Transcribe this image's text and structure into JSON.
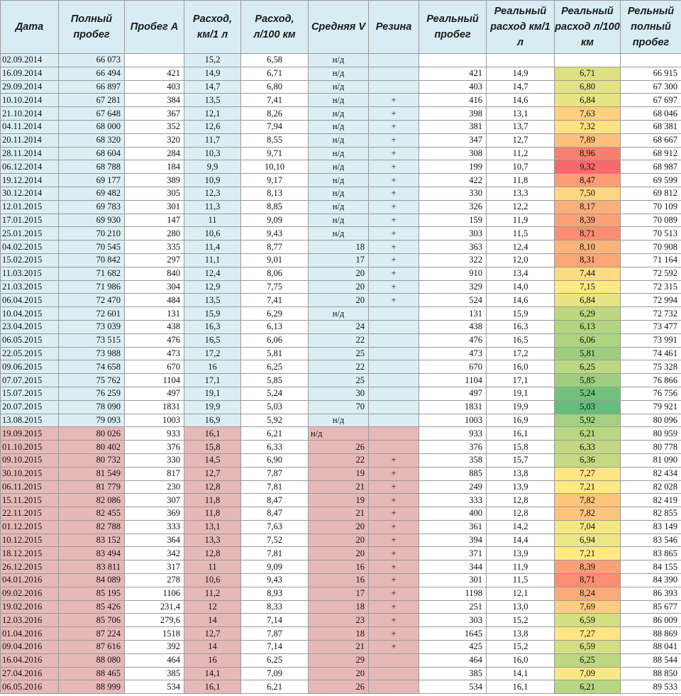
{
  "columns": [
    "Дата",
    "Полный пробег",
    "Пробег А",
    "Расход, км/1 л",
    "Расход, л/100 км",
    "Средняя V",
    "Резина",
    "Реальный пробег",
    "Реальный расход км/1 л",
    "Реальный расход л/100 км",
    "Рельный полный пробег"
  ],
  "colors": {
    "header_bg": "#d8ecf3",
    "period1_fill": "#daeef3",
    "period2_fill": "#e6b8b7",
    "scale_low": "#63be7b",
    "scale_mid": "#ffeb84",
    "scale_high": "#f8696b"
  },
  "rows": [
    {
      "date": "02.09.2014",
      "full": "66 073",
      "a": "",
      "rate_km": "15,2",
      "rate_l": "6,58",
      "v": "н/д",
      "tire": "",
      "real_a": "",
      "real_km": "",
      "real_l": "",
      "real_full": "",
      "period": 1
    },
    {
      "date": "16.09.2014",
      "full": "66 494",
      "a": "421",
      "rate_km": "14,9",
      "rate_l": "6,71",
      "v": "н/д",
      "tire": "",
      "real_a": "421",
      "real_km": "14,9",
      "real_l": "6,71",
      "real_full": "66 915",
      "period": 1
    },
    {
      "date": "29.09.2014",
      "full": "66 897",
      "a": "403",
      "rate_km": "14,7",
      "rate_l": "6,80",
      "v": "н/д",
      "tire": "",
      "real_a": "403",
      "real_km": "14,7",
      "real_l": "6,80",
      "real_full": "67 300",
      "period": 1
    },
    {
      "date": "10.10.2014",
      "full": "67 281",
      "a": "384",
      "rate_km": "13,5",
      "rate_l": "7,41",
      "v": "н/д",
      "tire": "+",
      "real_a": "416",
      "real_km": "14,6",
      "real_l": "6,84",
      "real_full": "67 697",
      "period": 1
    },
    {
      "date": "21.10.2014",
      "full": "67 648",
      "a": "367",
      "rate_km": "12,1",
      "rate_l": "8,26",
      "v": "н/д",
      "tire": "+",
      "real_a": "398",
      "real_km": "13,1",
      "real_l": "7,63",
      "real_full": "68 046",
      "period": 1
    },
    {
      "date": "04.11.2014",
      "full": "68 000",
      "a": "352",
      "rate_km": "12,6",
      "rate_l": "7,94",
      "v": "н/д",
      "tire": "+",
      "real_a": "381",
      "real_km": "13,7",
      "real_l": "7,32",
      "real_full": "68 381",
      "period": 1
    },
    {
      "date": "20.11.2014",
      "full": "68 320",
      "a": "320",
      "rate_km": "11,7",
      "rate_l": "8,55",
      "v": "н/д",
      "tire": "+",
      "real_a": "347",
      "real_km": "12,7",
      "real_l": "7,89",
      "real_full": "68 667",
      "period": 1
    },
    {
      "date": "28.11.2014",
      "full": "68 604",
      "a": "284",
      "rate_km": "10,3",
      "rate_l": "9,71",
      "v": "н/д",
      "tire": "+",
      "real_a": "308",
      "real_km": "11,2",
      "real_l": "8,96",
      "real_full": "68 912",
      "period": 1
    },
    {
      "date": "06.12.2014",
      "full": "68 788",
      "a": "184",
      "rate_km": "9,9",
      "rate_l": "10,10",
      "v": "н/д",
      "tire": "+",
      "real_a": "199",
      "real_km": "10,7",
      "real_l": "9,32",
      "real_full": "68 987",
      "period": 1
    },
    {
      "date": "19.12.2014",
      "full": "69 177",
      "a": "389",
      "rate_km": "10,9",
      "rate_l": "9,17",
      "v": "н/д",
      "tire": "+",
      "real_a": "422",
      "real_km": "11,8",
      "real_l": "8,47",
      "real_full": "69 599",
      "period": 1
    },
    {
      "date": "30.12.2014",
      "full": "69 482",
      "a": "305",
      "rate_km": "12,3",
      "rate_l": "8,13",
      "v": "н/д",
      "tire": "+",
      "real_a": "330",
      "real_km": "13,3",
      "real_l": "7,50",
      "real_full": "69 812",
      "period": 1
    },
    {
      "date": "12.01.2015",
      "full": "69 783",
      "a": "301",
      "rate_km": "11,3",
      "rate_l": "8,85",
      "v": "н/д",
      "tire": "+",
      "real_a": "326",
      "real_km": "12,2",
      "real_l": "8,17",
      "real_full": "70 109",
      "period": 1
    },
    {
      "date": "17.01.2015",
      "full": "69 930",
      "a": "147",
      "rate_km": "11",
      "rate_l": "9,09",
      "v": "н/д",
      "tire": "+",
      "real_a": "159",
      "real_km": "11,9",
      "real_l": "8,39",
      "real_full": "70 089",
      "period": 1
    },
    {
      "date": "25.01.2015",
      "full": "70 210",
      "a": "280",
      "rate_km": "10,6",
      "rate_l": "9,43",
      "v": "н/д",
      "tire": "+",
      "real_a": "303",
      "real_km": "11,5",
      "real_l": "8,71",
      "real_full": "70 513",
      "period": 1
    },
    {
      "date": "04.02.2015",
      "full": "70 545",
      "a": "335",
      "rate_km": "11,4",
      "rate_l": "8,77",
      "v": "18",
      "tire": "+",
      "real_a": "363",
      "real_km": "12,4",
      "real_l": "8,10",
      "real_full": "70 908",
      "period": 1
    },
    {
      "date": "15.02.2015",
      "full": "70 842",
      "a": "297",
      "rate_km": "11,1",
      "rate_l": "9,01",
      "v": "17",
      "tire": "+",
      "real_a": "322",
      "real_km": "12,0",
      "real_l": "8,31",
      "real_full": "71 164",
      "period": 1
    },
    {
      "date": "11.03.2015",
      "full": "71 682",
      "a": "840",
      "rate_km": "12,4",
      "rate_l": "8,06",
      "v": "20",
      "tire": "+",
      "real_a": "910",
      "real_km": "13,4",
      "real_l": "7,44",
      "real_full": "72 592",
      "period": 1
    },
    {
      "date": "21.03.2015",
      "full": "71 986",
      "a": "304",
      "rate_km": "12,9",
      "rate_l": "7,75",
      "v": "20",
      "tire": "+",
      "real_a": "329",
      "real_km": "14,0",
      "real_l": "7,15",
      "real_full": "72 315",
      "period": 1
    },
    {
      "date": "06.04.2015",
      "full": "72 470",
      "a": "484",
      "rate_km": "13,5",
      "rate_l": "7,41",
      "v": "20",
      "tire": "+",
      "real_a": "524",
      "real_km": "14,6",
      "real_l": "6,84",
      "real_full": "72 994",
      "period": 1
    },
    {
      "date": "10.04.2015",
      "full": "72 601",
      "a": "131",
      "rate_km": "15,9",
      "rate_l": "6,29",
      "v": "н/д",
      "tire": "",
      "real_a": "131",
      "real_km": "15,9",
      "real_l": "6,29",
      "real_full": "72 732",
      "period": 1
    },
    {
      "date": "23.04.2015",
      "full": "73 039",
      "a": "438",
      "rate_km": "16,3",
      "rate_l": "6,13",
      "v": "24",
      "tire": "",
      "real_a": "438",
      "real_km": "16,3",
      "real_l": "6,13",
      "real_full": "73 477",
      "period": 1
    },
    {
      "date": "06.05.2015",
      "full": "73 515",
      "a": "476",
      "rate_km": "16,5",
      "rate_l": "6,06",
      "v": "22",
      "tire": "",
      "real_a": "476",
      "real_km": "16,5",
      "real_l": "6,06",
      "real_full": "73 991",
      "period": 1
    },
    {
      "date": "22.05.2015",
      "full": "73 988",
      "a": "473",
      "rate_km": "17,2",
      "rate_l": "5,81",
      "v": "25",
      "tire": "",
      "real_a": "473",
      "real_km": "17,2",
      "real_l": "5,81",
      "real_full": "74 461",
      "period": 1
    },
    {
      "date": "09.06.2015",
      "full": "74 658",
      "a": "670",
      "rate_km": "16",
      "rate_l": "6,25",
      "v": "22",
      "tire": "",
      "real_a": "670",
      "real_km": "16,0",
      "real_l": "6,25",
      "real_full": "75 328",
      "period": 1
    },
    {
      "date": "07.07.2015",
      "full": "75 762",
      "a": "1104",
      "rate_km": "17,1",
      "rate_l": "5,85",
      "v": "25",
      "tire": "",
      "real_a": "1104",
      "real_km": "17,1",
      "real_l": "5,85",
      "real_full": "76 866",
      "period": 1
    },
    {
      "date": "15.07.2015",
      "full": "76 259",
      "a": "497",
      "rate_km": "19,1",
      "rate_l": "5,24",
      "v": "30",
      "tire": "",
      "real_a": "497",
      "real_km": "19,1",
      "real_l": "5,24",
      "real_full": "76 756",
      "period": 1
    },
    {
      "date": "20.07.2015",
      "full": "78 090",
      "a": "1831",
      "rate_km": "19,9",
      "rate_l": "5,03",
      "v": "70",
      "tire": "",
      "real_a": "1831",
      "real_km": "19,9",
      "real_l": "5,03",
      "real_full": "79 921",
      "period": 1
    },
    {
      "date": "13.08.2015",
      "full": "79 093",
      "a": "1003",
      "rate_km": "16,9",
      "rate_l": "5,92",
      "v": "н/д",
      "tire": "",
      "real_a": "1003",
      "real_km": "16,9",
      "real_l": "5,92",
      "real_full": "80 096",
      "period": 1
    },
    {
      "date": "19.09.2015",
      "full": "80 026",
      "a": "933",
      "rate_km": "16,1",
      "rate_l": "6,21",
      "v": "н/д",
      "tire": "",
      "real_a": "933",
      "real_km": "16,1",
      "real_l": "6,21",
      "real_full": "80 959",
      "period": 2
    },
    {
      "date": "01.10.2015",
      "full": "80 402",
      "a": "376",
      "rate_km": "15,8",
      "rate_l": "6,33",
      "v": "26",
      "tire": "",
      "real_a": "376",
      "real_km": "15,8",
      "real_l": "6,33",
      "real_full": "80 778",
      "period": 2
    },
    {
      "date": "09.10.2015",
      "full": "80 732",
      "a": "330",
      "rate_km": "14,5",
      "rate_l": "6,90",
      "v": "22",
      "tire": "+",
      "real_a": "358",
      "real_km": "15,7",
      "real_l": "6,36",
      "real_full": "81 090",
      "period": 2
    },
    {
      "date": "30.10.2015",
      "full": "81 549",
      "a": "817",
      "rate_km": "12,7",
      "rate_l": "7,87",
      "v": "19",
      "tire": "+",
      "real_a": "885",
      "real_km": "13,8",
      "real_l": "7,27",
      "real_full": "82 434",
      "period": 2
    },
    {
      "date": "06.11.2015",
      "full": "81 779",
      "a": "230",
      "rate_km": "12,8",
      "rate_l": "7,81",
      "v": "21",
      "tire": "+",
      "real_a": "249",
      "real_km": "13,9",
      "real_l": "7,21",
      "real_full": "82 028",
      "period": 2
    },
    {
      "date": "15.11.2015",
      "full": "82 086",
      "a": "307",
      "rate_km": "11,8",
      "rate_l": "8,47",
      "v": "19",
      "tire": "+",
      "real_a": "333",
      "real_km": "12,8",
      "real_l": "7,82",
      "real_full": "82 419",
      "period": 2
    },
    {
      "date": "22.11.2015",
      "full": "82 455",
      "a": "369",
      "rate_km": "11,8",
      "rate_l": "8,47",
      "v": "21",
      "tire": "+",
      "real_a": "400",
      "real_km": "12,8",
      "real_l": "7,82",
      "real_full": "82 855",
      "period": 2
    },
    {
      "date": "01.12.2015",
      "full": "82 788",
      "a": "333",
      "rate_km": "13,1",
      "rate_l": "7,63",
      "v": "20",
      "tire": "+",
      "real_a": "361",
      "real_km": "14,2",
      "real_l": "7,04",
      "real_full": "83 149",
      "period": 2
    },
    {
      "date": "10.12.2015",
      "full": "83 152",
      "a": "364",
      "rate_km": "13,3",
      "rate_l": "7,52",
      "v": "20",
      "tire": "+",
      "real_a": "394",
      "real_km": "14,4",
      "real_l": "6,94",
      "real_full": "83 546",
      "period": 2
    },
    {
      "date": "18.12.2015",
      "full": "83 494",
      "a": "342",
      "rate_km": "12,8",
      "rate_l": "7,81",
      "v": "20",
      "tire": "+",
      "real_a": "371",
      "real_km": "13,9",
      "real_l": "7,21",
      "real_full": "83 865",
      "period": 2
    },
    {
      "date": "26.12.2015",
      "full": "83 811",
      "a": "317",
      "rate_km": "11",
      "rate_l": "9,09",
      "v": "16",
      "tire": "+",
      "real_a": "344",
      "real_km": "11,9",
      "real_l": "8,39",
      "real_full": "84 155",
      "period": 2
    },
    {
      "date": "04.01.2016",
      "full": "84 089",
      "a": "278",
      "rate_km": "10,6",
      "rate_l": "9,43",
      "v": "16",
      "tire": "+",
      "real_a": "301",
      "real_km": "11,5",
      "real_l": "8,71",
      "real_full": "84 390",
      "period": 2
    },
    {
      "date": "09.02.2016",
      "full": "85 195",
      "a": "1106",
      "rate_km": "11,2",
      "rate_l": "8,93",
      "v": "17",
      "tire": "+",
      "real_a": "1198",
      "real_km": "12,1",
      "real_l": "8,24",
      "real_full": "86 393",
      "period": 2
    },
    {
      "date": "19.02.2016",
      "full": "85 426",
      "a": "231,4",
      "rate_km": "12",
      "rate_l": "8,33",
      "v": "18",
      "tire": "+",
      "real_a": "251",
      "real_km": "13,0",
      "real_l": "7,69",
      "real_full": "85 677",
      "period": 2
    },
    {
      "date": "12.03.2016",
      "full": "85 706",
      "a": "279,6",
      "rate_km": "14",
      "rate_l": "7,14",
      "v": "23",
      "tire": "+",
      "real_a": "303",
      "real_km": "15,2",
      "real_l": "6,59",
      "real_full": "86 009",
      "period": 2
    },
    {
      "date": "01.04.2016",
      "full": "87 224",
      "a": "1518",
      "rate_km": "12,7",
      "rate_l": "7,87",
      "v": "18",
      "tire": "+",
      "real_a": "1645",
      "real_km": "13,8",
      "real_l": "7,27",
      "real_full": "88 869",
      "period": 2
    },
    {
      "date": "09.04.2016",
      "full": "87 616",
      "a": "392",
      "rate_km": "14",
      "rate_l": "7,14",
      "v": "21",
      "tire": "+",
      "real_a": "425",
      "real_km": "15,2",
      "real_l": "6,59",
      "real_full": "88 041",
      "period": 2
    },
    {
      "date": "16.04.2016",
      "full": "88 080",
      "a": "464",
      "rate_km": "16",
      "rate_l": "6,25",
      "v": "29",
      "tire": "",
      "real_a": "464",
      "real_km": "16,0",
      "real_l": "6,25",
      "real_full": "88 544",
      "period": 2
    },
    {
      "date": "27.04.2016",
      "full": "88 465",
      "a": "385",
      "rate_km": "14,1",
      "rate_l": "7,09",
      "v": "20",
      "tire": "",
      "real_a": "385",
      "real_km": "14,1",
      "real_l": "7,09",
      "real_full": "88 850",
      "period": 2
    },
    {
      "date": "06.05.2016",
      "full": "88 999",
      "a": "534",
      "rate_km": "16,1",
      "rate_l": "6,21",
      "v": "26",
      "tire": "",
      "real_a": "534",
      "real_km": "16,1",
      "real_l": "6,21",
      "real_full": "89 533",
      "period": 2
    }
  ]
}
